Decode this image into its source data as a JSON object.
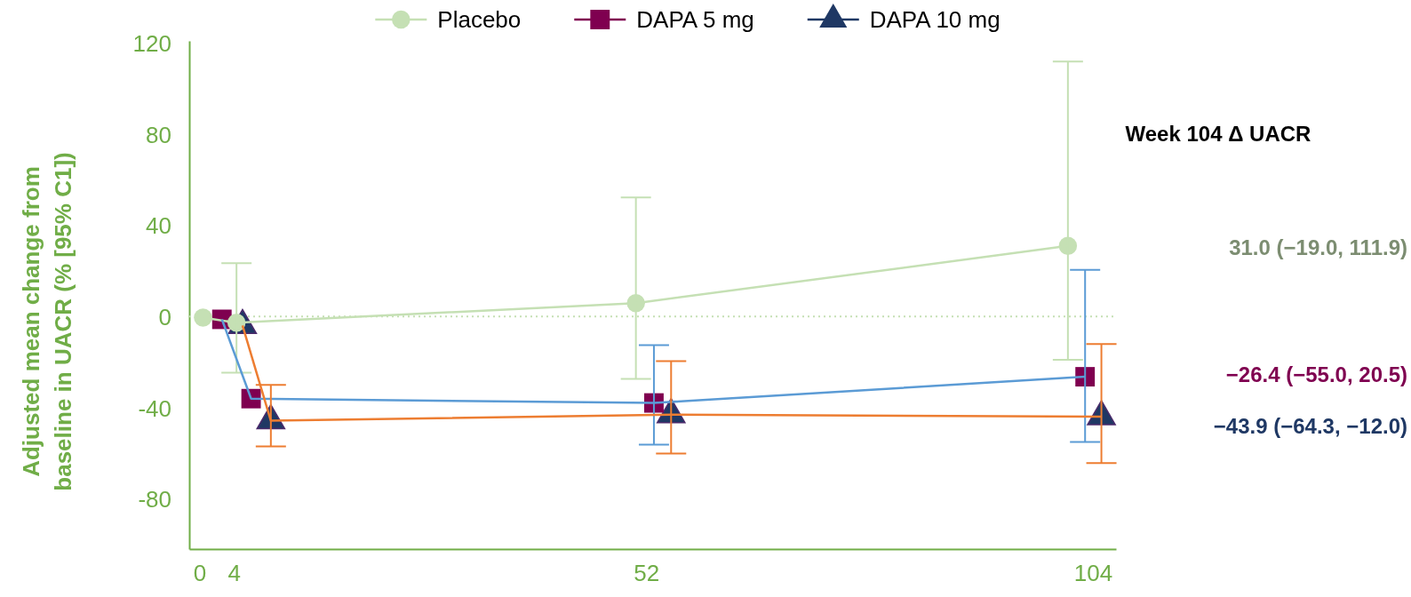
{
  "chart_data": {
    "type": "line",
    "ylabel": "Adjusted mean change from baseline in UACR (% [95% C1])",
    "xlim": [
      -1.2,
      106.7
    ],
    "xticks": [
      0,
      4,
      52,
      104
    ],
    "ylim": [
      -102,
      121
    ],
    "yticks": [
      -80,
      -40,
      0,
      40,
      80,
      120
    ],
    "grid": false,
    "legend": "top",
    "ref_lines": [
      {
        "axis": "y",
        "value": 0,
        "color": "#c5e0b4",
        "line_style": "dotted"
      }
    ],
    "series": [
      {
        "color": "#c5e0b4",
        "marker": "none",
        "x": [
          0.4,
          4.3,
          50.8,
          101.1
        ],
        "values": [
          -0.4,
          -2.7,
          5.9,
          31.0
        ],
        "errors": [
          null,
          [
            -24.6,
            23.4
          ],
          [
            -27.3,
            52.3
          ],
          [
            -19.0,
            111.9
          ]
        ]
      },
      {
        "color": "#5b9bd5",
        "marker": "none",
        "x": [
          2.6,
          6.0,
          52.9,
          103.1
        ],
        "values": [
          -1.2,
          -36.0,
          -37.9,
          -26.4
        ],
        "errors": [
          null,
          null,
          [
            -56.2,
            -12.5
          ],
          [
            -55.0,
            20.5
          ]
        ]
      },
      {
        "color": "#ed7d31",
        "marker": "none",
        "x": [
          5.0,
          8.3,
          54.9,
          105.0
        ],
        "values": [
          -3.9,
          -45.7,
          -43.0,
          -43.9
        ],
        "errors": [
          null,
          [
            -57.0,
            -30.0
          ],
          [
            -60.1,
            -19.5
          ],
          [
            -64.3,
            -12.0
          ]
        ]
      },
      {
        "type": "scatter",
        "name": "Placebo",
        "color": "#c5e0b4",
        "marker": "circle",
        "x": [
          0.4,
          4.3,
          50.8,
          101.1
        ],
        "values": [
          -0.4,
          -2.7,
          5.9,
          31.0
        ]
      },
      {
        "type": "scatter",
        "name": "DAPA 5 mg",
        "color": "#7f0050",
        "marker": "square",
        "x": [
          2.6,
          6.0,
          52.9,
          103.1
        ],
        "values": [
          -1.2,
          -36.0,
          -37.9,
          -26.4
        ]
      },
      {
        "type": "scatter",
        "name": "DAPA 10 mg",
        "color": "#1f3864",
        "marker": "triangle",
        "x": [
          5.0,
          8.3,
          54.9,
          105.0
        ],
        "values": [
          -3.9,
          -45.7,
          -43.0,
          -43.9
        ]
      }
    ],
    "annotations": [
      "Week 104 Δ UACR",
      "31.0 (−19.0, 111.9)",
      "−26.4 (−55.0, 20.5)",
      "−43.9 (−64.3, −12.0)"
    ]
  }
}
